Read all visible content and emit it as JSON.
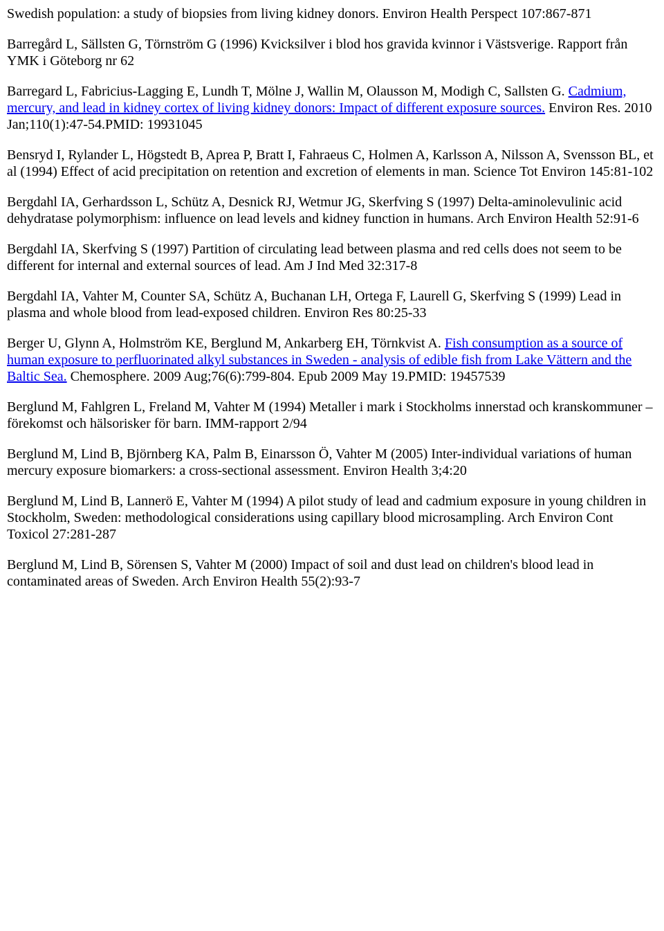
{
  "refs": {
    "r1": "Swedish population: a study of biopsies from living kidney donors. Environ Health Perspect 107:867-871",
    "r2": "Barregård L, Sällsten G, Törnström G (1996) Kvicksilver i blod hos gravida kvinnor i Västsverige. Rapport från YMK i Göteborg nr 62",
    "r3_pre": "Barregard L, Fabricius-Lagging E, Lundh T, Mölne J, Wallin M, Olausson M, Modigh C, Sallsten G. ",
    "r3_link": "Cadmium, mercury, and lead in kidney cortex of living kidney donors: Impact of different exposure sources.",
    "r3_post": " Environ Res. 2010 Jan;110(1):47-54.PMID: 19931045",
    "r4": "Bensryd I, Rylander L, Högstedt B, Aprea P, Bratt I, Fahraeus C, Holmen A, Karlsson A, Nilsson A, Svensson BL, et al (1994) Effect of acid precipitation on retention and excretion of elements in man. Science Tot Environ 145:81-102",
    "r5": "Bergdahl IA, Gerhardsson L, Schütz A, Desnick RJ, Wetmur JG, Skerfving S (1997) Delta-aminolevulinic acid dehydratase polymorphism: influence on lead levels and kidney function in humans. Arch Environ Health 52:91-6",
    "r6": "Bergdahl IA, Skerfving S (1997) Partition of circulating lead between plasma and red cells does not seem to be different for internal and external sources of lead. Am J Ind Med 32:317-8",
    "r7": "Bergdahl IA, Vahter M, Counter SA, Schütz A, Buchanan LH, Ortega F, Laurell G, Skerfving S (1999) Lead in plasma and whole blood from lead-exposed children. Environ Res 80:25-33",
    "r8_pre": "Berger U, Glynn A, Holmström KE, Berglund M, Ankarberg EH, Törnkvist A. ",
    "r8_link": "Fish consumption as a source of human exposure to perfluorinated alkyl substances in Sweden - analysis of edible fish from Lake Vättern and the Baltic Sea.",
    "r8_post": " Chemosphere. 2009 Aug;76(6):799-804. Epub 2009 May 19.PMID: 19457539",
    "r9": "Berglund M, Fahlgren L, Freland M, Vahter M (1994) Metaller i mark i Stockholms innerstad och kranskommuner –förekomst och hälsorisker för barn. IMM-rapport 2/94",
    "r10": "Berglund M, Lind B, Björnberg KA, Palm B, Einarsson Ö, Vahter M (2005) Inter-individual variations of human mercury exposure biomarkers: a cross-sectional assessment. Environ Health 3;4:20",
    "r11": "Berglund M, Lind B, Lannerö E, Vahter M (1994) A pilot study of lead and cadmium exposure in young children in Stockholm, Sweden: methodological considerations using capillary blood microsampling. Arch Environ Cont Toxicol 27:281-287",
    "r12": "Berglund M, Lind B, Sörensen S, Vahter M (2000) Impact of soil and dust lead on children's blood lead in contaminated areas of Sweden. Arch Environ Health 55(2):93-7"
  }
}
